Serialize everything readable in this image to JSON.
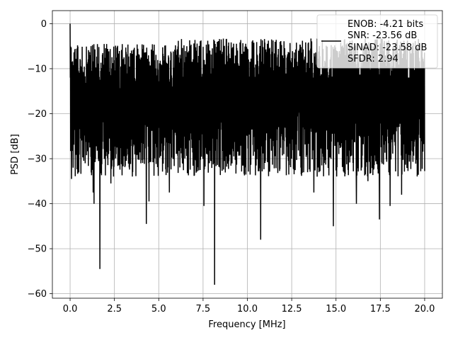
{
  "chart_data": {
    "type": "line",
    "title": "",
    "xlabel": "Frequency [MHz]",
    "ylabel": "PSD [dB]",
    "xlim": [
      -1.0,
      21.0
    ],
    "ylim": [
      -61.0,
      2.9
    ],
    "xticks": [
      0.0,
      2.5,
      5.0,
      7.5,
      10.0,
      12.5,
      15.0,
      17.5,
      20.0
    ],
    "xtick_labels": [
      "0.0",
      "2.5",
      "5.0",
      "7.5",
      "10.0",
      "12.5",
      "15.0",
      "17.5",
      "20.0"
    ],
    "yticks": [
      0,
      -10,
      -20,
      -30,
      -40,
      -50,
      -60
    ],
    "ytick_labels": [
      "0",
      "−10",
      "−20",
      "−30",
      "−40",
      "−50",
      "−60"
    ],
    "grid": true,
    "legend_position": "top-right",
    "series": [
      {
        "color": "#000000",
        "description": "dense noisy power spectral density trace; lower envelope varies randomly, upper envelope ~ -12 to -4 dB",
        "x_range": [
          0.0,
          20.0
        ],
        "peak": {
          "x": 0.0,
          "y": 0.0
        },
        "typical_upper": -8,
        "typical_lower": -30,
        "notable_dips": [
          {
            "x": 0.08,
            "y": -34.5
          },
          {
            "x": 1.3,
            "y": -37.5
          },
          {
            "x": 1.35,
            "y": -40.0
          },
          {
            "x": 1.68,
            "y": -54.5
          },
          {
            "x": 2.3,
            "y": -35.5
          },
          {
            "x": 4.3,
            "y": -44.5
          },
          {
            "x": 4.45,
            "y": -39.5
          },
          {
            "x": 5.6,
            "y": -37.5
          },
          {
            "x": 7.55,
            "y": -40.5
          },
          {
            "x": 8.15,
            "y": -58.0
          },
          {
            "x": 10.75,
            "y": -48.0
          },
          {
            "x": 13.75,
            "y": -37.5
          },
          {
            "x": 14.85,
            "y": -45.0
          },
          {
            "x": 16.15,
            "y": -40.0
          },
          {
            "x": 16.8,
            "y": -35.0
          },
          {
            "x": 17.45,
            "y": -43.5
          },
          {
            "x": 18.05,
            "y": -40.5
          },
          {
            "x": 18.7,
            "y": -38.0
          }
        ]
      }
    ],
    "legend_lines": [
      "ENOB: -4.21 bits",
      "SNR: -23.56 dB",
      "SINAD: -23.58 dB",
      "SFDR: 2.94"
    ]
  }
}
